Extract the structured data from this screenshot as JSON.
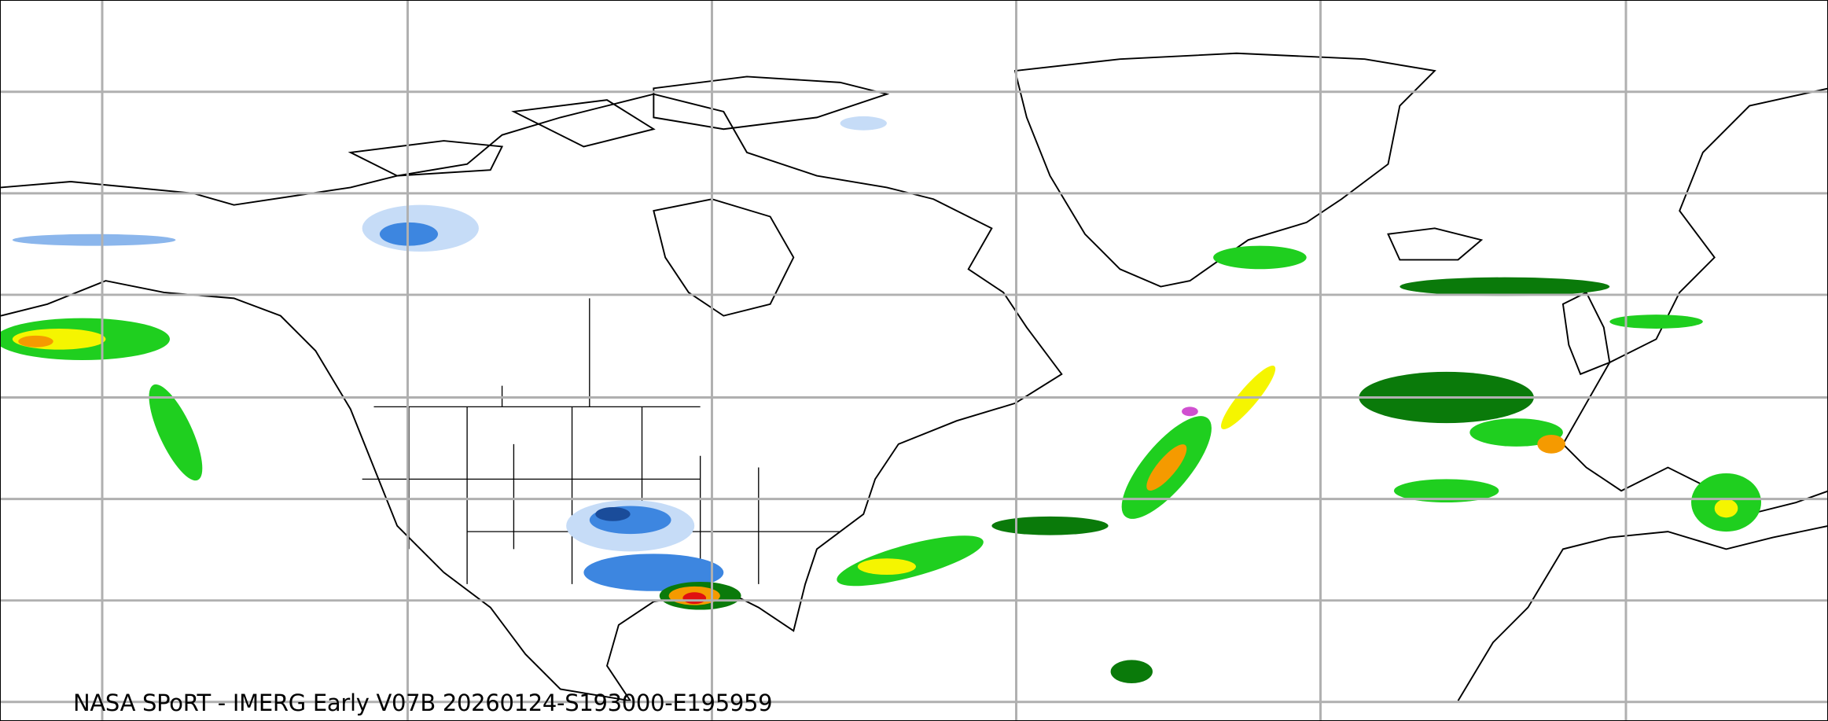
{
  "caption": "NASA SPoRT - IMERG Early V07B 20260124-S193000-E195959",
  "colors": {
    "gridline": "#b0b0b0",
    "coastline": "#000000",
    "light_snow": "#c6dcf7",
    "snow": "#3d86e0",
    "heavy_snow": "#1a4c9a",
    "light_rain": "#1fcf1f",
    "rain": "#0a7a0a",
    "moderate_rain": "#f5f500",
    "heavy_rain": "#f59a00",
    "very_heavy_rain": "#e01010",
    "mixed": "#d050d0"
  }
}
